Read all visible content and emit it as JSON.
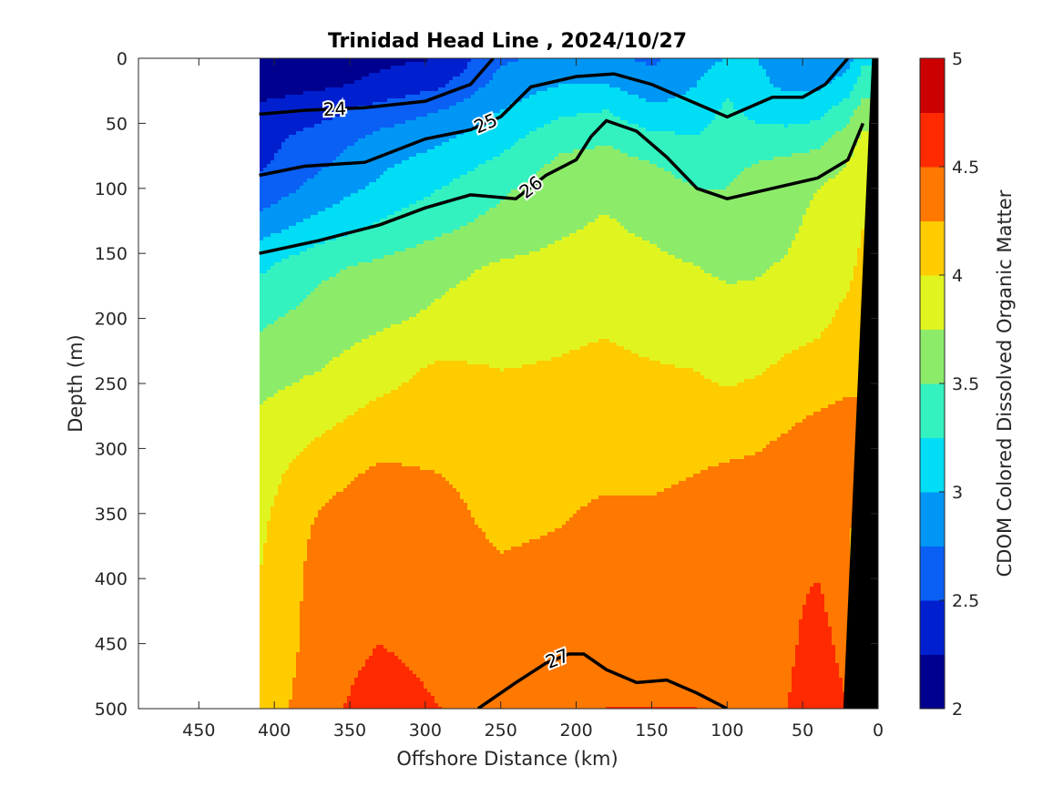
{
  "chart_data": {
    "type": "heatmap",
    "title": "Trinidad Head Line , 2024/10/27",
    "xlabel": "Offshore Distance (km)",
    "ylabel": "Depth (m)",
    "colorbar_label": "CDOM Colored Dissolved Organic Matter",
    "xlim": [
      490,
      0
    ],
    "ylim": [
      0,
      500
    ],
    "x_reversed": true,
    "y_reversed": true,
    "x_ticks": [
      450,
      400,
      350,
      300,
      250,
      200,
      150,
      100,
      50,
      0
    ],
    "y_ticks": [
      0,
      50,
      100,
      150,
      200,
      250,
      300,
      350,
      400,
      450,
      500
    ],
    "clim": [
      2,
      5
    ],
    "colorbar_ticks": [
      "2",
      "2.5",
      "3",
      "3.5",
      "4",
      "4.5",
      "5"
    ],
    "color_levels": [
      2,
      2.25,
      2.5,
      2.75,
      3,
      3.25,
      3.5,
      3.75,
      4,
      4.25,
      4.5,
      4.75,
      5
    ],
    "colormap": [
      "#00008f",
      "#0020d0",
      "#0a5ff5",
      "#0096f5",
      "#00ddf5",
      "#33f2c0",
      "#8cec6a",
      "#e0f520",
      "#ffcc00",
      "#ff7800",
      "#ff2a00",
      "#cc0000"
    ],
    "data_extent_x": [
      410,
      0
    ],
    "x_distance_km": [
      410,
      370,
      330,
      290,
      250,
      210,
      180,
      150,
      120,
      100,
      80,
      60,
      40,
      20,
      10
    ],
    "depth_m": [
      0,
      20,
      40,
      60,
      80,
      100,
      130,
      160,
      200,
      240,
      280,
      320,
      360,
      400,
      450,
      500
    ],
    "cdom_grid": [
      [
        2.1,
        2.15,
        2.2,
        2.25,
        2.7,
        2.85,
        2.8,
        2.7,
        2.9,
        3.0,
        3.0,
        2.9,
        2.85,
        2.9,
        3.2
      ],
      [
        2.15,
        2.2,
        2.3,
        2.45,
        2.85,
        3.0,
        3.0,
        2.85,
        3.0,
        3.2,
        3.05,
        2.95,
        2.95,
        3.1,
        3.4
      ],
      [
        2.3,
        2.4,
        2.6,
        2.75,
        3.0,
        3.2,
        3.25,
        3.05,
        3.1,
        3.3,
        3.15,
        3.1,
        3.15,
        3.4,
        3.6
      ],
      [
        2.4,
        2.6,
        2.8,
        2.95,
        3.15,
        3.4,
        3.45,
        3.3,
        3.25,
        3.4,
        3.35,
        3.35,
        3.4,
        3.6,
        3.8
      ],
      [
        2.45,
        2.7,
        2.95,
        3.1,
        3.3,
        3.55,
        3.6,
        3.5,
        3.4,
        3.45,
        3.5,
        3.55,
        3.6,
        3.75,
        3.9
      ],
      [
        2.55,
        2.85,
        3.05,
        3.25,
        3.45,
        3.65,
        3.7,
        3.6,
        3.5,
        3.5,
        3.6,
        3.65,
        3.75,
        3.85,
        3.95
      ],
      [
        2.9,
        3.1,
        3.3,
        3.45,
        3.6,
        3.72,
        3.78,
        3.7,
        3.6,
        3.55,
        3.62,
        3.7,
        3.82,
        3.9,
        4.0
      ],
      [
        3.2,
        3.45,
        3.55,
        3.68,
        3.78,
        3.82,
        3.85,
        3.82,
        3.75,
        3.7,
        3.72,
        3.78,
        3.88,
        3.95,
        4.05
      ],
      [
        3.45,
        3.6,
        3.7,
        3.8,
        3.9,
        3.95,
        3.97,
        3.92,
        3.88,
        3.85,
        3.85,
        3.9,
        3.95,
        4.05,
        4.15
      ],
      [
        3.65,
        3.75,
        3.9,
        4.05,
        4.0,
        4.02,
        4.05,
        4.02,
        4.0,
        3.95,
        3.98,
        4.05,
        4.08,
        4.15,
        4.2
      ],
      [
        3.8,
        3.95,
        4.1,
        4.15,
        4.12,
        4.15,
        4.15,
        4.12,
        4.1,
        4.1,
        4.15,
        4.22,
        4.3,
        4.35,
        4.3
      ],
      [
        3.9,
        4.15,
        4.3,
        4.25,
        4.2,
        4.2,
        4.22,
        4.2,
        4.25,
        4.3,
        4.32,
        4.4,
        4.45,
        4.45,
        4.2
      ],
      [
        3.95,
        4.3,
        4.45,
        4.3,
        4.22,
        4.25,
        4.3,
        4.32,
        4.38,
        4.42,
        4.42,
        4.45,
        4.45,
        4.4,
        3.8
      ],
      [
        4.0,
        4.35,
        4.5,
        4.35,
        4.28,
        4.3,
        4.38,
        4.42,
        4.45,
        4.45,
        4.42,
        4.45,
        4.5,
        4.35,
        3.4
      ],
      [
        4.05,
        4.35,
        4.5,
        4.4,
        4.35,
        4.4,
        4.45,
        4.48,
        4.5,
        4.45,
        4.42,
        4.45,
        4.6,
        4.4,
        3.5
      ],
      [
        4.1,
        4.4,
        4.65,
        4.5,
        4.4,
        4.45,
        4.5,
        4.5,
        4.5,
        4.45,
        4.45,
        4.5,
        4.7,
        4.5,
        4.0
      ]
    ],
    "density_contours": [
      {
        "label": "24",
        "bold": true,
        "points": [
          [
            410,
            43
          ],
          [
            380,
            40
          ],
          [
            340,
            38
          ],
          [
            300,
            33
          ],
          [
            270,
            20
          ],
          [
            255,
            0
          ]
        ]
      },
      {
        "label": "25",
        "bold": true,
        "points": [
          [
            410,
            90
          ],
          [
            380,
            83
          ],
          [
            340,
            80
          ],
          [
            300,
            62
          ],
          [
            270,
            55
          ],
          [
            250,
            45
          ],
          [
            230,
            22
          ],
          [
            200,
            14
          ],
          [
            175,
            12
          ],
          [
            150,
            20
          ],
          [
            120,
            35
          ],
          [
            100,
            45
          ],
          [
            70,
            30
          ],
          [
            50,
            30
          ],
          [
            35,
            20
          ],
          [
            20,
            0
          ]
        ]
      },
      {
        "label": "26",
        "bold": true,
        "points": [
          [
            410,
            150
          ],
          [
            370,
            140
          ],
          [
            330,
            128
          ],
          [
            300,
            115
          ],
          [
            270,
            105
          ],
          [
            240,
            108
          ],
          [
            220,
            90
          ],
          [
            200,
            78
          ],
          [
            190,
            60
          ],
          [
            180,
            48
          ],
          [
            160,
            56
          ],
          [
            140,
            76
          ],
          [
            120,
            100
          ],
          [
            100,
            108
          ],
          [
            70,
            100
          ],
          [
            40,
            92
          ],
          [
            20,
            78
          ],
          [
            10,
            50
          ]
        ]
      },
      {
        "label": "27",
        "bold": true,
        "points": [
          [
            265,
            500
          ],
          [
            240,
            480
          ],
          [
            220,
            465
          ],
          [
            205,
            458
          ],
          [
            195,
            458
          ],
          [
            180,
            470
          ],
          [
            160,
            480
          ],
          [
            140,
            478
          ],
          [
            120,
            488
          ],
          [
            100,
            500
          ]
        ]
      }
    ]
  }
}
